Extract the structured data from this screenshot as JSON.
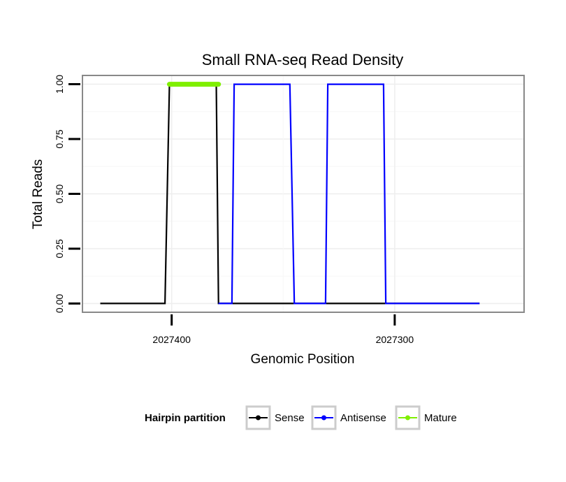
{
  "chart_data": {
    "type": "line",
    "title": "Small RNA-seq Read Density",
    "xlabel": "Genomic Position",
    "ylabel": "Total Reads",
    "x_reversed": true,
    "xlim": [
      2027440,
      2027242
    ],
    "ylim": [
      -0.04,
      1.04
    ],
    "x_ticks": [
      2027400,
      2027300
    ],
    "x_tick_labels": [
      "2027400",
      "2027300"
    ],
    "y_ticks": [
      0,
      0.25,
      0.5,
      0.75,
      1.0
    ],
    "y_tick_labels": [
      "0.00",
      "0.25",
      "0.50",
      "0.75",
      "1.00"
    ],
    "grid": true,
    "legend": {
      "title": "Hairpin partition",
      "position": "bottom",
      "entries": [
        "Sense",
        "Antisense",
        "Mature"
      ]
    },
    "series": [
      {
        "name": "Sense",
        "color": "#000000",
        "x": [
          2027432,
          2027403,
          2027401,
          2027380,
          2027379,
          2027262
        ],
        "y": [
          0,
          0,
          1,
          1,
          0,
          0
        ]
      },
      {
        "name": "Antisense",
        "color": "#0000ff",
        "x": [
          2027379,
          2027373,
          2027372,
          2027347,
          2027345,
          2027331,
          2027330,
          2027305,
          2027304,
          2027262
        ],
        "y": [
          0,
          0,
          1,
          1,
          0,
          0,
          1,
          1,
          0,
          0
        ]
      },
      {
        "name": "Mature",
        "color": "#7fef00",
        "x": [
          2027401,
          2027379
        ],
        "y": [
          1,
          1
        ]
      }
    ]
  }
}
